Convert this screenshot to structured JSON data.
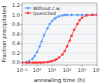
{
  "chart_data": {
    "type": "line",
    "title": "",
    "xlabel": "annealing time (h)",
    "ylabel": "Fraction precipitated",
    "log": "x",
    "grid": "y",
    "legend": "upper left",
    "xlim": [
      0.1,
      10000
    ],
    "xticks": [
      {
        "value": 0.1,
        "label": "10⁻¹"
      },
      {
        "value": 1,
        "label": "10⁰"
      },
      {
        "value": 10,
        "label": "10¹"
      },
      {
        "value": 100,
        "label": "10²"
      },
      {
        "value": 1000,
        "label": "10³"
      },
      {
        "value": 10000,
        "label": "10⁴"
      }
    ],
    "ylim": [
      -0.05,
      1.25
    ],
    "yticks": [
      {
        "value": 0.0,
        "label": "0.0"
      },
      {
        "value": 0.2,
        "label": "0.2"
      },
      {
        "value": 0.4,
        "label": "0.4"
      },
      {
        "value": 0.6,
        "label": "0.6"
      },
      {
        "value": 0.8,
        "label": "0.8"
      },
      {
        "value": 1.0,
        "label": "1.0"
      },
      {
        "value": 1.2,
        "label": "1.2"
      }
    ],
    "series": [
      {
        "name": "Without c.w.",
        "color": "#5599ff",
        "marker": "diamond",
        "x": [
          0.1,
          0.2,
          0.3,
          0.5,
          0.7,
          1.0,
          1.5,
          2.0,
          3.0,
          5.0,
          7.0,
          10.0,
          15.0,
          20.0,
          30.0,
          50.0,
          70.0,
          100.0,
          200.0,
          500.0,
          1000.0,
          2000.0,
          5000.0,
          10000.0
        ],
        "values": [
          0.0,
          0.01,
          0.03,
          0.08,
          0.14,
          0.22,
          0.34,
          0.44,
          0.58,
          0.72,
          0.81,
          0.87,
          0.92,
          0.95,
          0.97,
          0.99,
          1.0,
          1.0,
          1.0,
          1.0,
          1.0,
          1.0,
          1.0,
          1.0
        ]
      },
      {
        "name": "Quenched",
        "color": "#ff3333",
        "marker": "square",
        "x": [
          0.1,
          0.2,
          0.3,
          0.5,
          0.7,
          1.0,
          1.5,
          2.0,
          3.0,
          5.0,
          7.0,
          10.0,
          15.0,
          20.0,
          30.0,
          50.0,
          70.0,
          100.0,
          150.0,
          200.0,
          300.0,
          500.0,
          700.0,
          1000.0,
          2000.0,
          5000.0,
          10000.0
        ],
        "values": [
          0.0,
          0.0,
          0.0,
          0.0,
          0.0,
          0.0,
          0.0,
          0.0,
          0.005,
          0.01,
          0.02,
          0.03,
          0.05,
          0.07,
          0.11,
          0.17,
          0.24,
          0.34,
          0.46,
          0.56,
          0.69,
          0.81,
          0.89,
          0.94,
          0.99,
          1.0,
          1.0
        ]
      }
    ]
  }
}
